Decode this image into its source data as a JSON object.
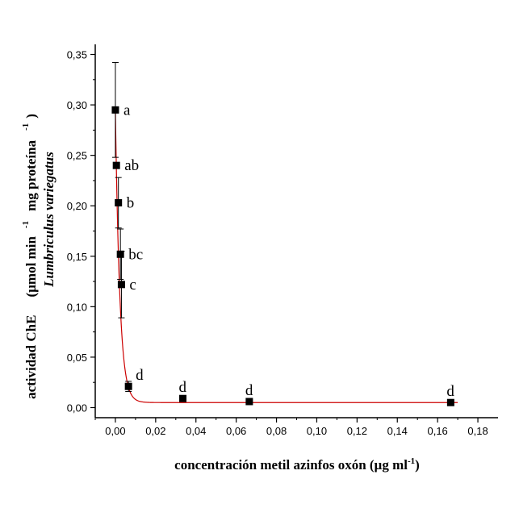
{
  "chart_data": {
    "type": "scatter",
    "xlabel": "concentración metil azinfos oxón (µg ml",
    "xlabel_sup": "-1",
    "xlabel_end": ")",
    "ylabel_main": "actividad ChE",
    "ylabel_units_a": "(µmol min",
    "ylabel_sup_a": "-1",
    "ylabel_units_b": "mg proteína",
    "ylabel_sup_b": "-1",
    "ylabel_units_end": ")",
    "ylabel_species": "Lumbriculus variegatus",
    "xlim": [
      -0.01,
      0.19
    ],
    "ylim": [
      -0.01,
      0.36
    ],
    "x_ticks": [
      0.0,
      0.02,
      0.04,
      0.06,
      0.08,
      0.1,
      0.12,
      0.14,
      0.16,
      0.18
    ],
    "x_tick_labels": [
      "0,00",
      "0,02",
      "0,04",
      "0,06",
      "0,08",
      "0,10",
      "0,12",
      "0,14",
      "0,16",
      "0,18"
    ],
    "y_ticks": [
      0.0,
      0.05,
      0.1,
      0.15,
      0.2,
      0.25,
      0.3,
      0.35
    ],
    "y_tick_labels": [
      "0,00",
      "0,05",
      "0,10",
      "0,15",
      "0,20",
      "0,25",
      "0,30",
      "0,35"
    ],
    "points": [
      {
        "x": 0.0,
        "y": 0.295,
        "err": 0.047,
        "letter": "a"
      },
      {
        "x": 0.0005,
        "y": 0.24,
        "err": 0.0,
        "letter": "ab"
      },
      {
        "x": 0.0015,
        "y": 0.203,
        "err": 0.025,
        "letter": "b"
      },
      {
        "x": 0.0025,
        "y": 0.152,
        "err": 0.025,
        "letter": "bc"
      },
      {
        "x": 0.003,
        "y": 0.122,
        "err": 0.033,
        "letter": "c"
      },
      {
        "x": 0.0065,
        "y": 0.021,
        "err": 0.005,
        "letter": "d"
      },
      {
        "x": 0.0335,
        "y": 0.009,
        "err": 0.002,
        "letter": "d"
      },
      {
        "x": 0.0665,
        "y": 0.006,
        "err": 0.002,
        "letter": "d"
      },
      {
        "x": 0.1665,
        "y": 0.005,
        "err": 0.002,
        "letter": "d"
      }
    ],
    "fit_curve": {
      "type": "exponential-decay",
      "y0": 0.005,
      "A": 0.29,
      "t": 0.0022
    },
    "colors": {
      "markers": "#000000",
      "fit_line": "#cc0000",
      "error_bars": "#000000"
    },
    "grid": false,
    "legend": "none"
  }
}
